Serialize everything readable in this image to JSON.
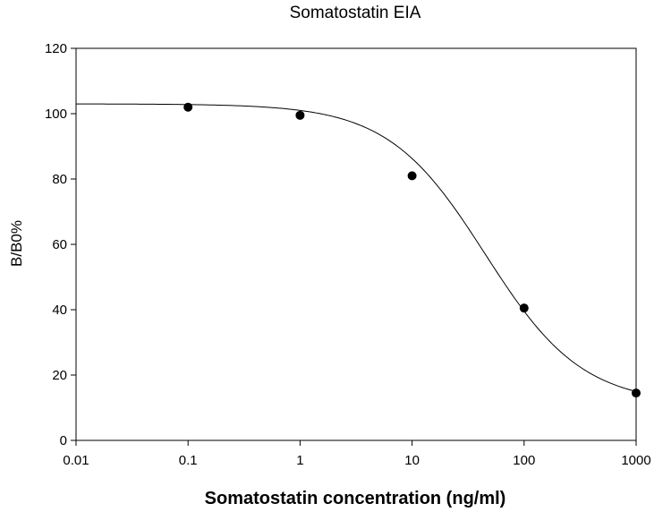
{
  "chart_data": {
    "type": "scatter",
    "title": "Somatostatin EIA",
    "xlabel": "Somatostatin concentration (ng/ml)",
    "ylabel": "B/B0%",
    "x_scale": "log",
    "xlim": [
      0.01,
      1000
    ],
    "ylim": [
      0,
      120
    ],
    "x_ticks": [
      "0.01",
      "0.1",
      "1",
      "10",
      "100",
      "1000"
    ],
    "y_ticks": [
      "0",
      "20",
      "40",
      "60",
      "80",
      "100",
      "120"
    ],
    "grid": false,
    "legend": "none",
    "series": [
      {
        "x": [
          0.1,
          1,
          10,
          100,
          1000
        ],
        "y": [
          102,
          99.5,
          81,
          40.5,
          14.5
        ],
        "marker": "filled-circle",
        "color": "#000000"
      }
    ],
    "fit_curve": {
      "model": "4PL",
      "top": 103,
      "bottom": 11,
      "ec50": 45,
      "hill": 1,
      "color": "#000000"
    }
  }
}
